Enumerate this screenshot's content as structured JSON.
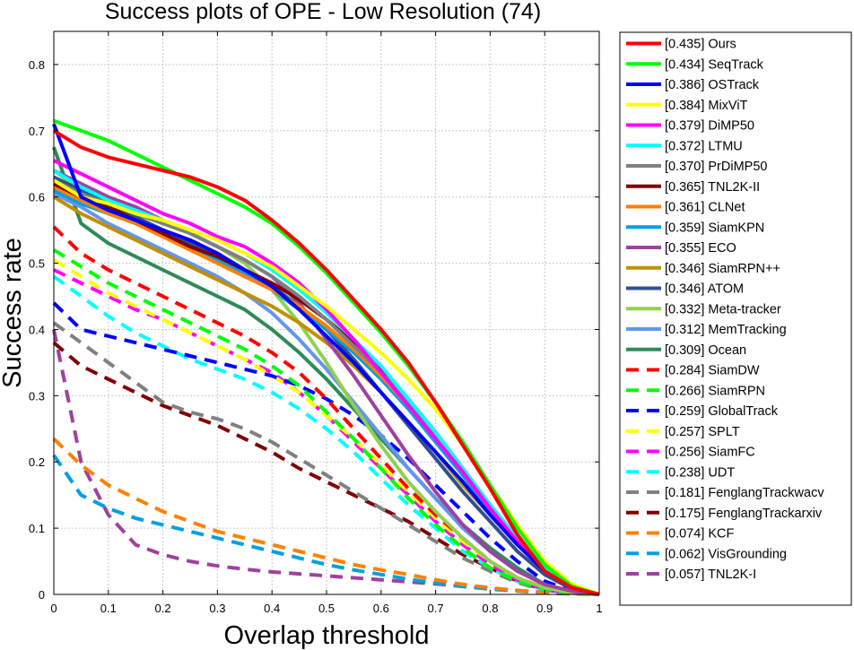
{
  "chart_data": {
    "type": "line",
    "title": "Success plots of OPE - Low Resolution (74)",
    "xlabel": "Overlap threshold",
    "ylabel": "Success rate",
    "xlim": [
      0,
      1
    ],
    "ylim": [
      0,
      0.85
    ],
    "xticks": [
      0,
      0.1,
      0.2,
      0.3,
      0.4,
      0.5,
      0.6,
      0.7,
      0.8,
      0.9,
      1
    ],
    "xtick_labels": [
      "0",
      "0.1",
      "0.2",
      "0.3",
      "0.4",
      "0.5",
      "0.6",
      "0.7",
      "0.8",
      "0.9",
      "1"
    ],
    "yticks": [
      0,
      0.1,
      0.2,
      0.3,
      0.4,
      0.5,
      0.6,
      0.7,
      0.8
    ],
    "ytick_labels": [
      "0",
      "0.1",
      "0.2",
      "0.3",
      "0.4",
      "0.5",
      "0.6",
      "0.7",
      "0.8"
    ],
    "grid": true,
    "legend_position": "outside-right",
    "x": [
      0,
      0.05,
      0.1,
      0.15,
      0.2,
      0.25,
      0.3,
      0.35,
      0.4,
      0.45,
      0.5,
      0.55,
      0.6,
      0.65,
      0.7,
      0.75,
      0.8,
      0.85,
      0.9,
      0.95,
      1
    ],
    "series": [
      {
        "name": "Ours",
        "label": "[0.435] Ours",
        "color": "#ff0000",
        "style": "solid",
        "values": [
          0.7,
          0.675,
          0.66,
          0.65,
          0.64,
          0.63,
          0.615,
          0.595,
          0.565,
          0.53,
          0.49,
          0.445,
          0.4,
          0.35,
          0.29,
          0.225,
          0.16,
          0.09,
          0.035,
          0.01,
          0.0
        ]
      },
      {
        "name": "SeqTrack",
        "label": "[0.434] SeqTrack",
        "color": "#00ff00",
        "style": "solid",
        "values": [
          0.715,
          0.7,
          0.685,
          0.665,
          0.645,
          0.625,
          0.605,
          0.585,
          0.56,
          0.525,
          0.485,
          0.44,
          0.395,
          0.345,
          0.29,
          0.23,
          0.165,
          0.1,
          0.045,
          0.012,
          0.0
        ]
      },
      {
        "name": "OSTrack",
        "label": "[0.386] OSTrack",
        "color": "#0000ff",
        "style": "solid",
        "values": [
          0.71,
          0.6,
          0.58,
          0.565,
          0.55,
          0.535,
          0.515,
          0.49,
          0.465,
          0.43,
          0.39,
          0.35,
          0.305,
          0.26,
          0.215,
          0.17,
          0.12,
          0.075,
          0.035,
          0.01,
          0.0
        ]
      },
      {
        "name": "MixViT",
        "label": "[0.384] MixViT",
        "color": "#ffff00",
        "style": "solid",
        "values": [
          0.625,
          0.6,
          0.59,
          0.575,
          0.565,
          0.55,
          0.535,
          0.515,
          0.495,
          0.465,
          0.435,
          0.4,
          0.365,
          0.325,
          0.28,
          0.225,
          0.165,
          0.105,
          0.05,
          0.015,
          0.0
        ]
      },
      {
        "name": "DiMP50",
        "label": "[0.379] DiMP50",
        "color": "#ff00ff",
        "style": "solid",
        "values": [
          0.655,
          0.635,
          0.615,
          0.595,
          0.575,
          0.56,
          0.54,
          0.525,
          0.5,
          0.47,
          0.43,
          0.385,
          0.335,
          0.285,
          0.235,
          0.185,
          0.13,
          0.08,
          0.035,
          0.01,
          0.0
        ]
      },
      {
        "name": "LTMU",
        "label": "[0.372] LTMU",
        "color": "#00ffff",
        "style": "solid",
        "values": [
          0.64,
          0.615,
          0.595,
          0.58,
          0.565,
          0.55,
          0.535,
          0.515,
          0.49,
          0.46,
          0.425,
          0.385,
          0.345,
          0.295,
          0.245,
          0.19,
          0.135,
          0.085,
          0.04,
          0.01,
          0.0
        ]
      },
      {
        "name": "PrDiMP50",
        "label": "[0.370] PrDiMP50",
        "color": "#808080",
        "style": "solid",
        "values": [
          0.625,
          0.605,
          0.59,
          0.575,
          0.56,
          0.545,
          0.525,
          0.505,
          0.48,
          0.45,
          0.415,
          0.375,
          0.335,
          0.29,
          0.24,
          0.19,
          0.135,
          0.085,
          0.04,
          0.01,
          0.0
        ]
      },
      {
        "name": "TNL2K-II",
        "label": "[0.365] TNL2K-II",
        "color": "#800000",
        "style": "solid",
        "values": [
          0.62,
          0.6,
          0.585,
          0.565,
          0.545,
          0.525,
          0.51,
          0.49,
          0.47,
          0.445,
          0.415,
          0.38,
          0.34,
          0.295,
          0.245,
          0.19,
          0.135,
          0.08,
          0.035,
          0.01,
          0.0
        ]
      },
      {
        "name": "CLNet",
        "label": "[0.361] CLNet",
        "color": "#ff8000",
        "style": "solid",
        "values": [
          0.615,
          0.595,
          0.575,
          0.56,
          0.54,
          0.52,
          0.5,
          0.48,
          0.46,
          0.435,
          0.405,
          0.37,
          0.33,
          0.285,
          0.235,
          0.185,
          0.13,
          0.08,
          0.035,
          0.01,
          0.0
        ]
      },
      {
        "name": "SiamKPN",
        "label": "[0.359] SiamKPN",
        "color": "#00a0e0",
        "style": "solid",
        "values": [
          0.61,
          0.59,
          0.575,
          0.56,
          0.545,
          0.525,
          0.505,
          0.485,
          0.46,
          0.43,
          0.4,
          0.365,
          0.325,
          0.28,
          0.23,
          0.18,
          0.125,
          0.075,
          0.035,
          0.01,
          0.0
        ]
      },
      {
        "name": "ECO",
        "label": "[0.355] ECO",
        "color": "#a040a0",
        "style": "solid",
        "values": [
          0.64,
          0.62,
          0.6,
          0.585,
          0.565,
          0.545,
          0.525,
          0.505,
          0.48,
          0.44,
          0.385,
          0.33,
          0.27,
          0.21,
          0.155,
          0.105,
          0.065,
          0.035,
          0.015,
          0.005,
          0.0
        ]
      },
      {
        "name": "SiamRPN++",
        "label": "[0.346] SiamRPN++",
        "color": "#c09000",
        "style": "solid",
        "values": [
          0.6,
          0.575,
          0.555,
          0.535,
          0.515,
          0.495,
          0.475,
          0.455,
          0.435,
          0.41,
          0.38,
          0.345,
          0.305,
          0.26,
          0.215,
          0.165,
          0.12,
          0.075,
          0.035,
          0.01,
          0.0
        ]
      },
      {
        "name": "ATOM",
        "label": "[0.346] ATOM",
        "color": "#2f4f8f",
        "style": "solid",
        "values": [
          0.63,
          0.61,
          0.59,
          0.57,
          0.55,
          0.53,
          0.51,
          0.49,
          0.465,
          0.435,
          0.4,
          0.355,
          0.305,
          0.255,
          0.205,
          0.155,
          0.11,
          0.065,
          0.03,
          0.008,
          0.0
        ]
      },
      {
        "name": "Meta-tracker",
        "label": "[0.332] Meta-tracker",
        "color": "#90d050",
        "style": "solid",
        "values": [
          0.64,
          0.61,
          0.59,
          0.575,
          0.56,
          0.545,
          0.525,
          0.5,
          0.46,
          0.41,
          0.35,
          0.285,
          0.225,
          0.17,
          0.125,
          0.085,
          0.05,
          0.025,
          0.01,
          0.003,
          0.0
        ]
      },
      {
        "name": "MemTracking",
        "label": "[0.312] MemTracking",
        "color": "#6495ed",
        "style": "solid",
        "values": [
          0.605,
          0.585,
          0.56,
          0.54,
          0.52,
          0.5,
          0.48,
          0.455,
          0.425,
          0.385,
          0.34,
          0.29,
          0.24,
          0.19,
          0.145,
          0.1,
          0.065,
          0.035,
          0.015,
          0.004,
          0.0
        ]
      },
      {
        "name": "Ocean",
        "label": "[0.309] Ocean",
        "color": "#2e8b57",
        "style": "solid",
        "values": [
          0.675,
          0.56,
          0.53,
          0.51,
          0.49,
          0.47,
          0.45,
          0.43,
          0.4,
          0.365,
          0.325,
          0.28,
          0.235,
          0.19,
          0.145,
          0.105,
          0.07,
          0.04,
          0.015,
          0.004,
          0.0
        ]
      },
      {
        "name": "SiamDW",
        "label": "[0.284] SiamDW",
        "color": "#ff0000",
        "style": "dashed",
        "values": [
          0.555,
          0.515,
          0.49,
          0.47,
          0.45,
          0.43,
          0.41,
          0.39,
          0.365,
          0.335,
          0.295,
          0.25,
          0.205,
          0.16,
          0.12,
          0.085,
          0.05,
          0.025,
          0.01,
          0.003,
          0.0
        ]
      },
      {
        "name": "SiamRPN",
        "label": "[0.266] SiamRPN",
        "color": "#00ff00",
        "style": "dashed",
        "values": [
          0.52,
          0.495,
          0.47,
          0.45,
          0.43,
          0.41,
          0.39,
          0.37,
          0.345,
          0.315,
          0.275,
          0.235,
          0.19,
          0.145,
          0.105,
          0.07,
          0.04,
          0.02,
          0.008,
          0.002,
          0.0
        ]
      },
      {
        "name": "GlobalTrack",
        "label": "[0.259] GlobalTrack",
        "color": "#0000ff",
        "style": "dashed",
        "values": [
          0.44,
          0.4,
          0.39,
          0.38,
          0.37,
          0.36,
          0.35,
          0.34,
          0.33,
          0.315,
          0.295,
          0.27,
          0.24,
          0.205,
          0.165,
          0.125,
          0.085,
          0.05,
          0.02,
          0.005,
          0.0
        ]
      },
      {
        "name": "SPLT",
        "label": "[0.257] SPLT",
        "color": "#ffff00",
        "style": "dashed",
        "values": [
          0.505,
          0.48,
          0.455,
          0.435,
          0.415,
          0.395,
          0.375,
          0.355,
          0.33,
          0.305,
          0.27,
          0.235,
          0.195,
          0.155,
          0.115,
          0.08,
          0.05,
          0.025,
          0.01,
          0.003,
          0.0
        ]
      },
      {
        "name": "SiamFC",
        "label": "[0.256] SiamFC",
        "color": "#ff00ff",
        "style": "dashed",
        "values": [
          0.49,
          0.47,
          0.45,
          0.43,
          0.415,
          0.395,
          0.375,
          0.355,
          0.335,
          0.305,
          0.27,
          0.23,
          0.19,
          0.15,
          0.11,
          0.075,
          0.045,
          0.022,
          0.008,
          0.002,
          0.0
        ]
      },
      {
        "name": "UDT",
        "label": "[0.238] UDT",
        "color": "#00ffff",
        "style": "dashed",
        "values": [
          0.48,
          0.45,
          0.42,
          0.395,
          0.375,
          0.355,
          0.34,
          0.325,
          0.305,
          0.28,
          0.25,
          0.215,
          0.175,
          0.135,
          0.1,
          0.065,
          0.04,
          0.02,
          0.007,
          0.002,
          0.0
        ]
      },
      {
        "name": "FenglangTrackwacv",
        "label": "[0.181] FenglangTrackwacv",
        "color": "#808080",
        "style": "dashed",
        "values": [
          0.41,
          0.38,
          0.35,
          0.32,
          0.29,
          0.275,
          0.265,
          0.25,
          0.23,
          0.205,
          0.18,
          0.155,
          0.13,
          0.105,
          0.08,
          0.055,
          0.035,
          0.018,
          0.006,
          0.002,
          0.0
        ]
      },
      {
        "name": "FenglangTrackarxiv",
        "label": "[0.175] FenglangTrackarxiv",
        "color": "#800000",
        "style": "dashed",
        "values": [
          0.38,
          0.345,
          0.325,
          0.305,
          0.285,
          0.27,
          0.255,
          0.235,
          0.215,
          0.19,
          0.17,
          0.15,
          0.13,
          0.11,
          0.085,
          0.06,
          0.04,
          0.02,
          0.007,
          0.002,
          0.0
        ]
      },
      {
        "name": "KCF",
        "label": "[0.074] KCF",
        "color": "#ff8000",
        "style": "dashed",
        "values": [
          0.235,
          0.195,
          0.165,
          0.145,
          0.125,
          0.11,
          0.095,
          0.085,
          0.075,
          0.065,
          0.055,
          0.045,
          0.037,
          0.03,
          0.022,
          0.015,
          0.01,
          0.006,
          0.003,
          0.001,
          0.0
        ]
      },
      {
        "name": "VisGrounding",
        "label": "[0.062] VisGrounding",
        "color": "#00a0e0",
        "style": "dashed",
        "values": [
          0.21,
          0.15,
          0.13,
          0.115,
          0.105,
          0.095,
          0.085,
          0.075,
          0.065,
          0.055,
          0.045,
          0.037,
          0.03,
          0.023,
          0.017,
          0.012,
          0.008,
          0.005,
          0.002,
          0.001,
          0.0
        ]
      },
      {
        "name": "TNL2K-I",
        "label": "[0.057] TNL2K-I",
        "color": "#a040a0",
        "style": "dashed",
        "values": [
          0.4,
          0.2,
          0.12,
          0.075,
          0.06,
          0.05,
          0.043,
          0.038,
          0.034,
          0.031,
          0.028,
          0.025,
          0.022,
          0.019,
          0.016,
          0.012,
          0.009,
          0.006,
          0.003,
          0.001,
          0.0
        ]
      }
    ]
  }
}
